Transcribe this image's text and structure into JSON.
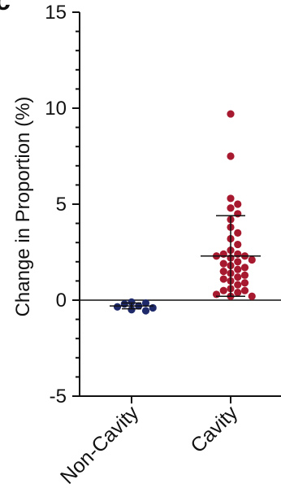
{
  "panel_letter": "c",
  "chart_data": {
    "type": "scatter",
    "title": "",
    "xlabel": "",
    "ylabel": "Change in Proportion (%)",
    "ylim": [
      -5,
      15
    ],
    "yticks": [
      -5,
      0,
      5,
      10,
      15
    ],
    "categories": [
      "Non-Cavity",
      "Cavity"
    ],
    "colors": [
      "#1f2a6b",
      "#a6192e"
    ],
    "grid": false,
    "reference_line": 0,
    "series": [
      {
        "category": "Non-Cavity",
        "mean": -0.3,
        "error_low": -0.45,
        "error_high": -0.15,
        "values": [
          -0.1,
          -0.15,
          -0.2,
          -0.3,
          -0.35,
          -0.4,
          -0.5,
          -0.55
        ]
      },
      {
        "category": "Cavity",
        "mean": 2.3,
        "error_low": 0.2,
        "error_high": 4.4,
        "values": [
          9.7,
          7.5,
          5.3,
          5.0,
          4.8,
          4.5,
          4.2,
          3.8,
          3.5,
          3.2,
          2.9,
          2.6,
          2.4,
          2.4,
          2.3,
          2.3,
          2.2,
          2.1,
          2.0,
          1.9,
          1.8,
          1.7,
          1.6,
          1.5,
          1.4,
          1.3,
          1.2,
          1.1,
          1.0,
          0.9,
          0.8,
          0.6,
          0.5,
          0.5,
          0.4,
          0.3,
          0.2,
          0.2
        ]
      }
    ]
  }
}
